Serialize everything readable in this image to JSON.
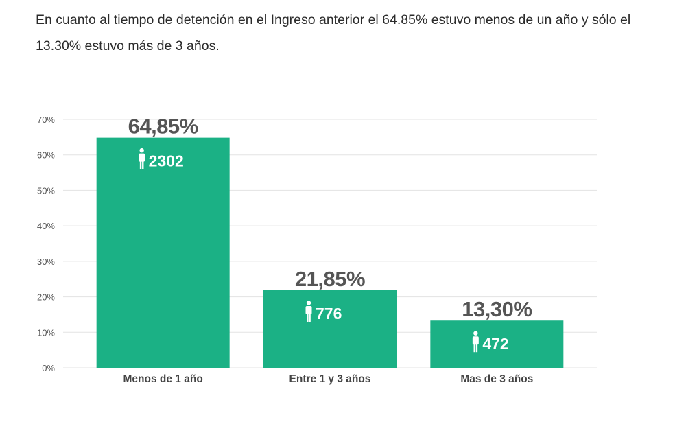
{
  "intro_text": "En cuanto al tiempo de detención en el Ingreso anterior el 64.85% estuvo menos de un año y sólo el 13.30% estuvo más de 3 años.",
  "chart_data": {
    "type": "bar",
    "categories": [
      "Menos de 1 año",
      "Entre 1 y 3 años",
      "Mas de 3 años"
    ],
    "values": [
      64.85,
      21.85,
      13.3
    ],
    "value_labels": [
      "64,85%",
      "21,85%",
      "13,30%"
    ],
    "counts": [
      "2302",
      "776",
      "472"
    ],
    "count_icon": "person-icon",
    "y_ticks": [
      "0%",
      "10%",
      "20%",
      "30%",
      "40%",
      "50%",
      "60%",
      "70%"
    ],
    "ylim": [
      0,
      70
    ],
    "grid": true,
    "colors": {
      "bar": "#1bb185",
      "grid": "#e3e3e3",
      "label": "#555555"
    }
  }
}
